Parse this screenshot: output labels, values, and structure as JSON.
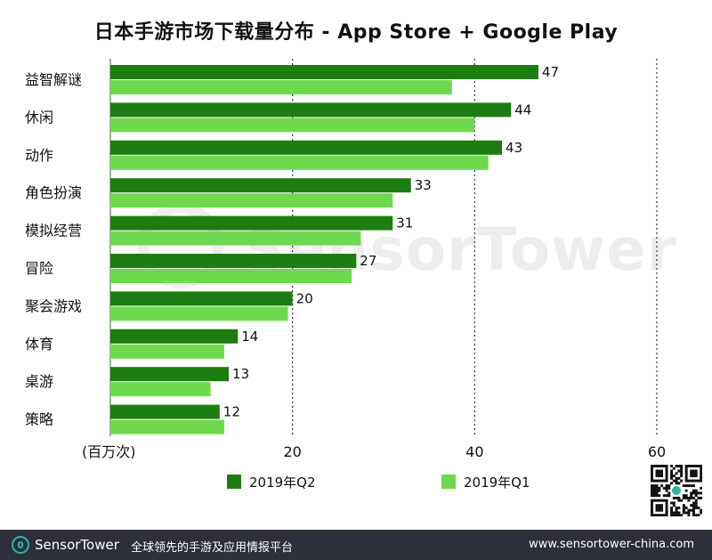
{
  "title": "日本手游市场下载量分布 - App Store + Google Play",
  "unit_label": "(百万次)",
  "colors": {
    "q2": "#1e7d10",
    "q1": "#6fd94e",
    "grid": "#333333"
  },
  "watermark": {
    "text": "SensorTower"
  },
  "footer": {
    "brand": "SensorTower",
    "tagline": "全球领先的手游及应用情报平台",
    "url": "www.sensortower-china.com"
  },
  "chart_data": {
    "type": "bar",
    "orientation": "horizontal",
    "title": "日本手游市场下载量分布 - App Store + Google Play",
    "categories": [
      "益智解谜",
      "休闲",
      "动作",
      "角色扮演",
      "模拟经营",
      "冒险",
      "聚会游戏",
      "体育",
      "桌游",
      "策略"
    ],
    "series": [
      {
        "name": "2019年Q2",
        "values": [
          47,
          44,
          43,
          33,
          31,
          27,
          20,
          14,
          13,
          12
        ],
        "labeled": true
      },
      {
        "name": "2019年Q1",
        "values": [
          37.5,
          40,
          41.5,
          31,
          27.5,
          26.5,
          19.5,
          12.5,
          11,
          12.5
        ],
        "labeled": false
      }
    ],
    "xlim": [
      0,
      60
    ],
    "xticks": [
      20,
      40,
      60
    ],
    "grid": "vertical-dotted",
    "legend_position": "bottom"
  }
}
